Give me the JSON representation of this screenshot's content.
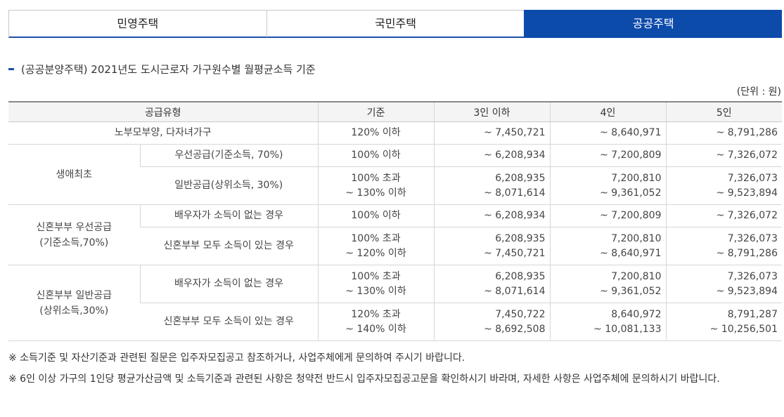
{
  "tabs": [
    {
      "label": "민영주택",
      "active": false
    },
    {
      "label": "국민주택",
      "active": false
    },
    {
      "label": "공공주택",
      "active": true
    }
  ],
  "section_title": "(공공분양주택) 2021년도 도시근로자 가구원수별 월평균소득 기준",
  "unit_label": "(단위 : 원)",
  "table": {
    "headers": [
      "공급유형",
      "기준",
      "3인 이하",
      "4인",
      "5인"
    ],
    "rows": {
      "r1": {
        "type": "노부모부양, 다자녀가구",
        "criteria": [
          "120% 이하"
        ],
        "v3": [
          "~ 7,450,721"
        ],
        "v4": [
          "~ 8,640,971"
        ],
        "v5": [
          "~ 8,791,286"
        ]
      },
      "group_first": "생애최초",
      "r2": {
        "sub": "우선공급(기준소득, 70%)",
        "criteria": [
          "100% 이하"
        ],
        "v3": [
          "~ 6,208,934"
        ],
        "v4": [
          "~ 7,200,809"
        ],
        "v5": [
          "~ 7,326,072"
        ]
      },
      "r3": {
        "sub": "일반공급(상위소득, 30%)",
        "criteria": [
          "100% 초과",
          "~ 130% 이하"
        ],
        "v3": [
          "6,208,935",
          "~ 8,071,614"
        ],
        "v4": [
          "7,200,810",
          "~ 9,361,052"
        ],
        "v5": [
          "7,326,073",
          "~ 9,523,894"
        ]
      },
      "group_newlywed_priority": [
        "신혼부부 우선공급",
        "(기준소득,70%)"
      ],
      "r4": {
        "sub": "배우자가 소득이 없는 경우",
        "criteria": [
          "100% 이하"
        ],
        "v3": [
          "~ 6,208,934"
        ],
        "v4": [
          "~ 7,200,809"
        ],
        "v5": [
          "~ 7,326,072"
        ]
      },
      "r5": {
        "sub": "신혼부부 모두 소득이 있는 경우",
        "criteria": [
          "100% 초과",
          "~ 120% 이하"
        ],
        "v3": [
          "6,208,935",
          "~ 7,450,721"
        ],
        "v4": [
          "7,200,810",
          "~ 8,640,971"
        ],
        "v5": [
          "7,326,073",
          "~ 8,791,286"
        ]
      },
      "group_newlywed_general": [
        "신혼부부 일반공급",
        "(상위소득,30%)"
      ],
      "r6": {
        "sub": "배우자가 소득이 없는 경우",
        "criteria": [
          "100% 초과",
          "~ 130% 이하"
        ],
        "v3": [
          "6,208,935",
          "~ 8,071,614"
        ],
        "v4": [
          "7,200,810",
          "~ 9,361,052"
        ],
        "v5": [
          "7,326,073",
          "~ 9,523,894"
        ]
      },
      "r7": {
        "sub": "신혼부부 모두 소득이 있는 경우",
        "criteria": [
          "120% 초과",
          "~ 140% 이하"
        ],
        "v3": [
          "7,450,722",
          "~ 8,692,508"
        ],
        "v4": [
          "8,640,972",
          "~ 10,081,133"
        ],
        "v5": [
          "8,791,287",
          "~ 10,256,501"
        ]
      }
    }
  },
  "notes": [
    "※ 소득기준 및 자산기준과 관련된 질문은 입주자모집공고 참조하거나, 사업주체에게 문의하여 주시기 바랍니다.",
    "※ 6인 이상 가구의 1인당 평균가산금액 및 소득기준과 관련된 사항은 청약전 반드시 입주자모집공고문을 확인하시기 바라며, 자세한 사항은 사업주체에 문의하시기 바랍니다."
  ]
}
